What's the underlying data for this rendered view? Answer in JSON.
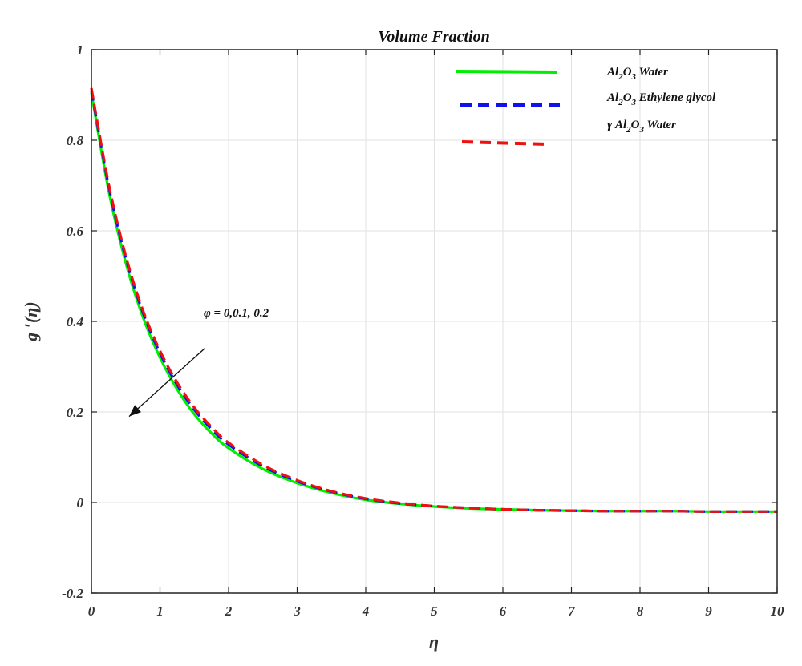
{
  "chart_data": {
    "type": "line",
    "title": "Volume Fraction",
    "xlabel": "η",
    "ylabel": "g ′(η)",
    "xlim": [
      0,
      10
    ],
    "ylim": [
      -0.2,
      1
    ],
    "x_ticks": [
      "0",
      "1",
      "2",
      "3",
      "4",
      "5",
      "6",
      "7",
      "8",
      "9",
      "10"
    ],
    "y_ticks": [
      "-0.2",
      "0",
      "0.2",
      "0.4",
      "0.6",
      "0.8",
      "1"
    ],
    "grid": true,
    "legend_position": "top-right",
    "x": [
      0,
      0.25,
      0.5,
      0.75,
      1,
      1.25,
      1.5,
      1.75,
      2,
      2.5,
      3,
      3.5,
      4,
      4.5,
      5,
      5.5,
      6,
      6.5,
      7,
      7.5,
      8,
      8.5,
      9,
      9.5,
      10
    ],
    "series": [
      {
        "name": "Al₂O₃ Water",
        "legend_parts": [
          "Al",
          "2",
          "O",
          "3",
          "  Water"
        ],
        "color": "#00ee00",
        "style": "solid",
        "values": [
          0.905,
          0.69,
          0.53,
          0.41,
          0.32,
          0.25,
          0.195,
          0.153,
          0.12,
          0.074,
          0.043,
          0.021,
          0.006,
          -0.003,
          -0.009,
          -0.013,
          -0.015,
          -0.017,
          -0.018,
          -0.019,
          -0.019,
          -0.019,
          -0.02,
          -0.02,
          -0.02
        ]
      },
      {
        "name": "Al₂O₃ Ethylene glycol",
        "legend_parts": [
          "Al",
          "2",
          "O",
          "3",
          "  Ethylene glycol"
        ],
        "color": "#1111ee",
        "style": "dashed",
        "values": [
          0.91,
          0.7,
          0.54,
          0.42,
          0.33,
          0.26,
          0.205,
          0.162,
          0.128,
          0.08,
          0.047,
          0.024,
          0.008,
          -0.002,
          -0.008,
          -0.012,
          -0.015,
          -0.017,
          -0.018,
          -0.019,
          -0.019,
          -0.019,
          -0.02,
          -0.02,
          -0.02
        ]
      },
      {
        "name": "γ Al₂O₃ Water",
        "legend_parts": [
          "γ Al",
          "2",
          "O",
          "3",
          " Water"
        ],
        "color": "#ee1111",
        "style": "dashed",
        "values": [
          0.915,
          0.705,
          0.545,
          0.425,
          0.335,
          0.265,
          0.21,
          0.167,
          0.132,
          0.083,
          0.049,
          0.025,
          0.009,
          -0.001,
          -0.008,
          -0.012,
          -0.015,
          -0.017,
          -0.018,
          -0.019,
          -0.019,
          -0.019,
          -0.02,
          -0.02,
          -0.02
        ]
      }
    ],
    "annotations": [
      {
        "text": "φ = 0,0.1, 0.2",
        "arrow_from": [
          1.65,
          0.34
        ],
        "arrow_to": [
          0.55,
          0.19
        ]
      }
    ]
  }
}
